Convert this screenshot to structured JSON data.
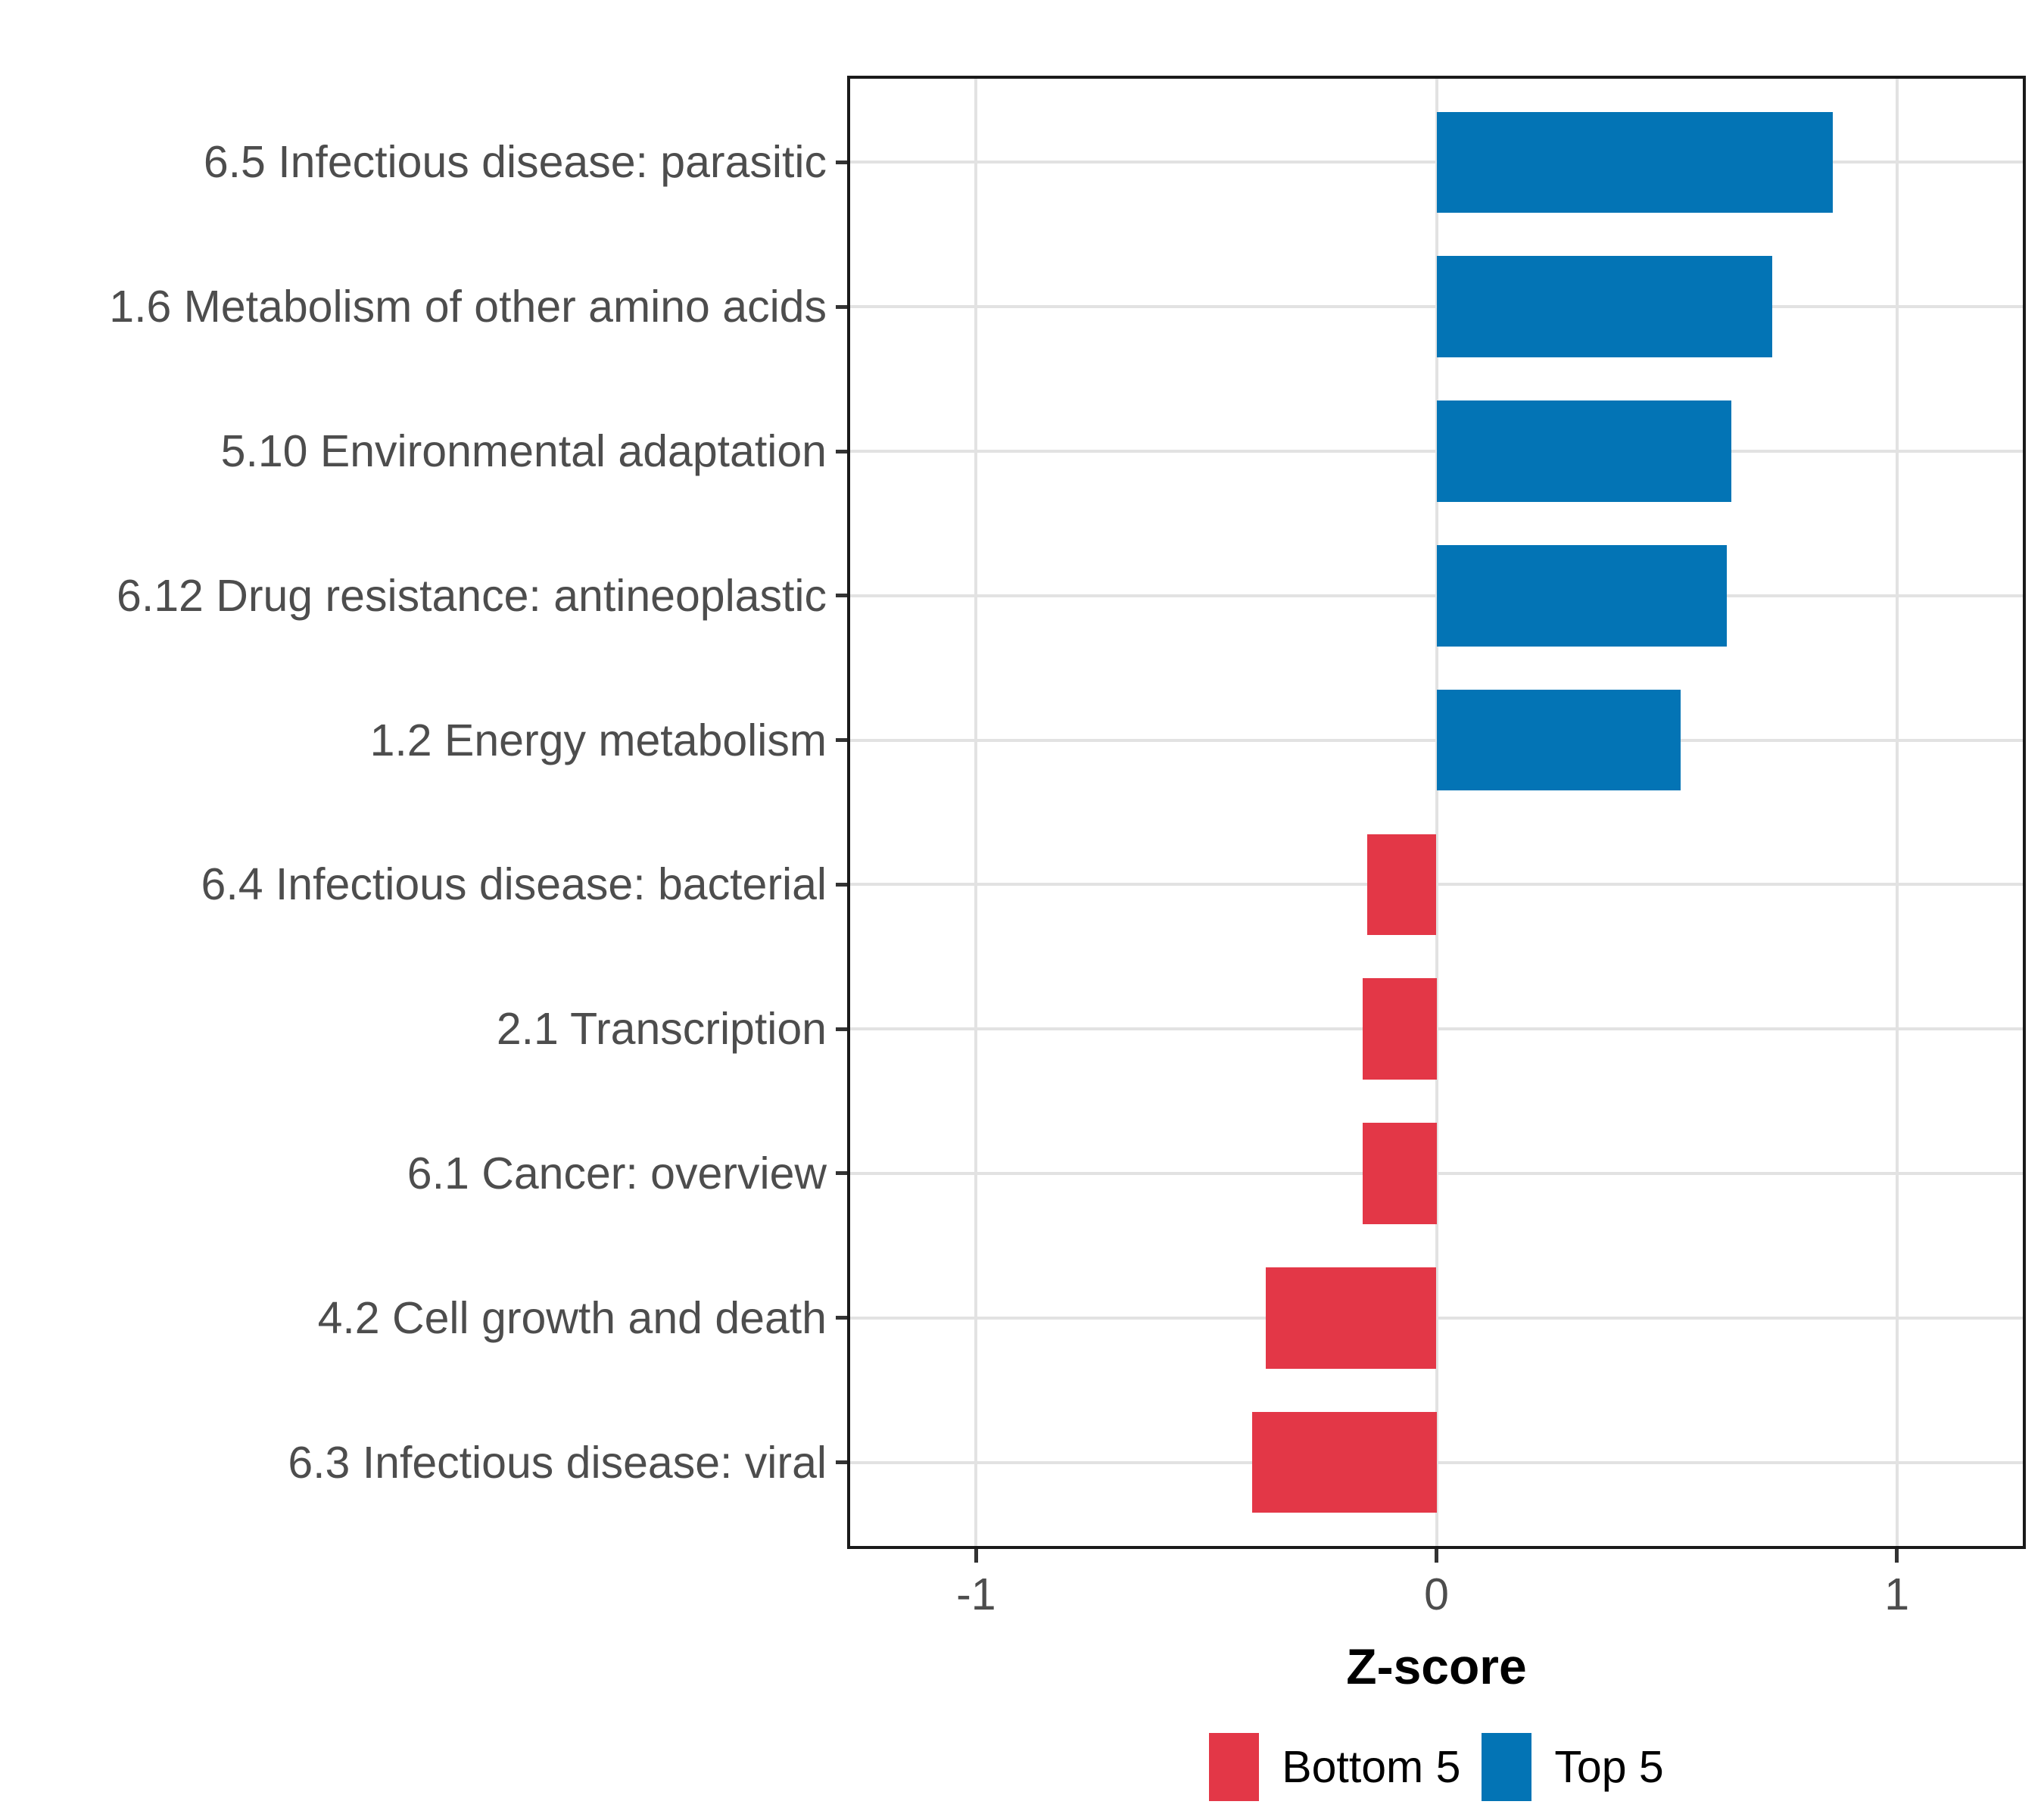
{
  "chart_data": {
    "type": "bar",
    "orientation": "horizontal",
    "title": "",
    "xlabel": "Z-score",
    "ylabel": "",
    "xlim": [
      -1.28,
      1.28
    ],
    "x_ticks": [
      -1,
      0,
      1
    ],
    "grid": "major-only",
    "legend_position": "bottom",
    "categories": [
      "6.5 Infectious disease: parasitic",
      "1.6 Metabolism of other amino acids",
      "5.10 Environmental adaptation",
      "6.12 Drug resistance: antineoplastic",
      "1.2 Energy metabolism",
      "6.4 Infectious disease: bacterial",
      "2.1 Transcription",
      "6.1 Cancer: overview",
      "4.2 Cell growth and death",
      "6.3 Infectious disease: viral"
    ],
    "values": [
      0.86,
      0.73,
      0.64,
      0.63,
      0.53,
      -0.15,
      -0.16,
      -0.16,
      -0.37,
      -0.4
    ],
    "groups": [
      "Top 5",
      "Top 5",
      "Top 5",
      "Top 5",
      "Top 5",
      "Bottom 5",
      "Bottom 5",
      "Bottom 5",
      "Bottom 5",
      "Bottom 5"
    ],
    "colors": {
      "Top 5": "#0374B5",
      "Bottom 5": "#E33747"
    },
    "legend": {
      "entries": [
        {
          "label": "Bottom 5",
          "color": "#E33747"
        },
        {
          "label": "Top 5",
          "color": "#0374B5"
        }
      ]
    }
  },
  "styles": {
    "background": "#FFFFFF",
    "grid_color": "#E2E2E2",
    "panel_border_color": "#1A1A1A",
    "tick_color": "#333333",
    "axis_text_color": "#4D4D4D",
    "axis_title_color": "#000000",
    "legend_text_color": "#000000"
  }
}
